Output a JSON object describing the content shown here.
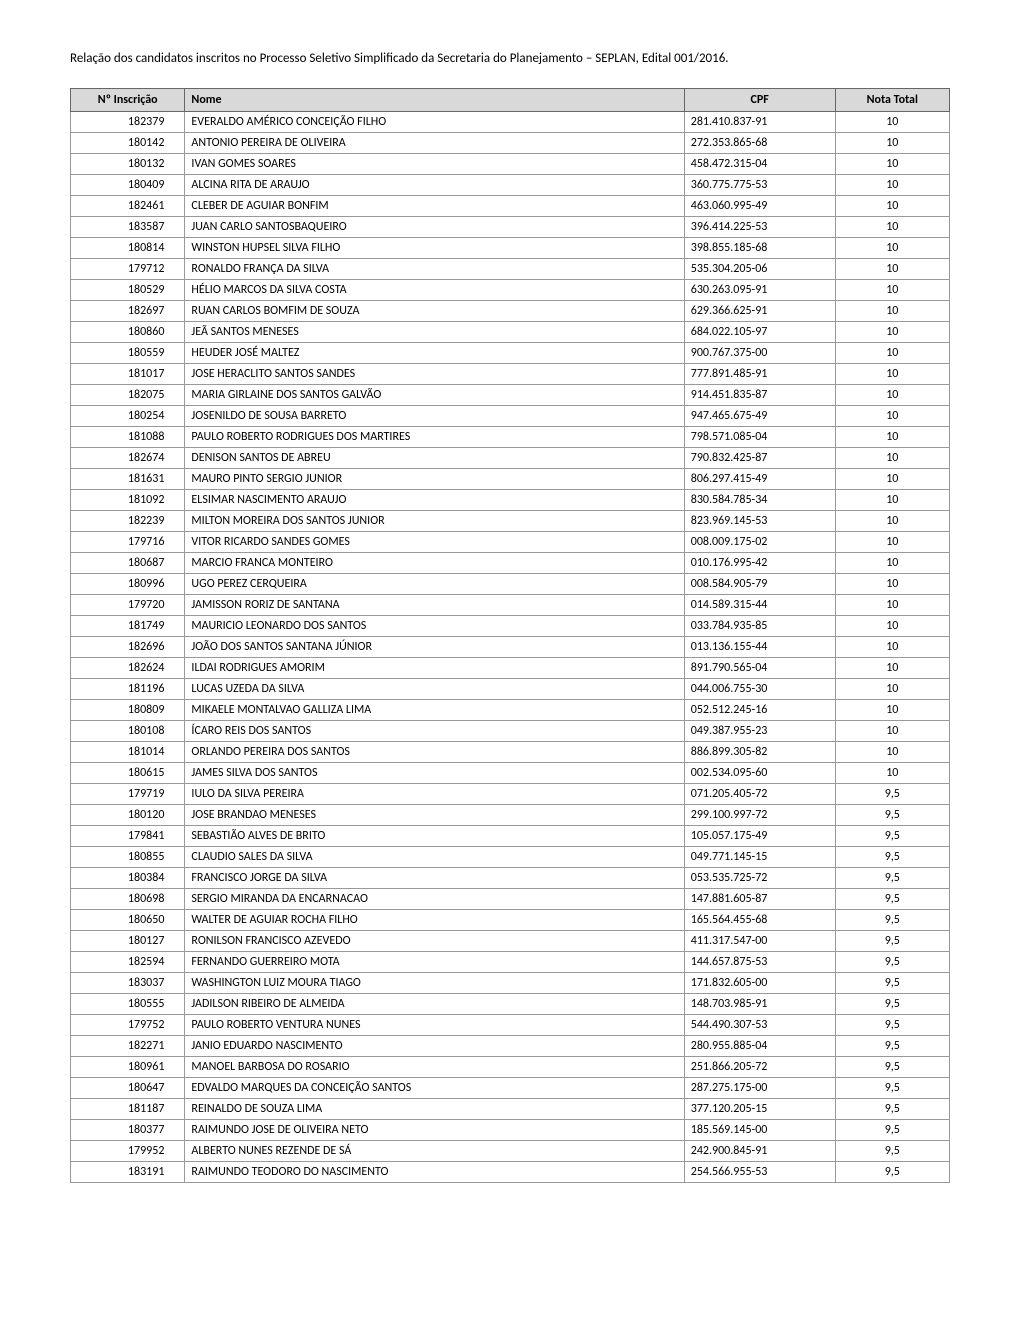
{
  "title": "Relação dos candidatos inscritos no Processo Seletivo Simplificado da Secretaria do Planejamento – SEPLAN, Edital 001/2016.",
  "table": {
    "headers": {
      "inscricao": "Nº Inscrição",
      "nome": "Nome",
      "cpf": "CPF",
      "nota": "Nota Total"
    },
    "rows": [
      {
        "inscricao": "182379",
        "nome": "EVERALDO AMÉRICO CONCEIÇÃO FILHO",
        "cpf": "281.410.837-91",
        "nota": "10"
      },
      {
        "inscricao": "180142",
        "nome": "ANTONIO PEREIRA DE OLIVEIRA",
        "cpf": "272.353.865-68",
        "nota": "10"
      },
      {
        "inscricao": "180132",
        "nome": "IVAN GOMES SOARES",
        "cpf": "458.472.315-04",
        "nota": "10"
      },
      {
        "inscricao": "180409",
        "nome": "ALCINA RITA DE ARAUJO",
        "cpf": "360.775.775-53",
        "nota": "10"
      },
      {
        "inscricao": "182461",
        "nome": "CLEBER DE AGUIAR BONFIM",
        "cpf": "463.060.995-49",
        "nota": "10"
      },
      {
        "inscricao": "183587",
        "nome": "JUAN CARLO SANTOSBAQUEIRO",
        "cpf": "396.414.225-53",
        "nota": "10"
      },
      {
        "inscricao": "180814",
        "nome": "WINSTON HUPSEL SILVA FILHO",
        "cpf": "398.855.185-68",
        "nota": "10"
      },
      {
        "inscricao": "179712",
        "nome": "RONALDO FRANÇA DA SILVA",
        "cpf": "535.304.205-06",
        "nota": "10"
      },
      {
        "inscricao": "180529",
        "nome": "HÉLIO MARCOS DA SILVA COSTA",
        "cpf": "630.263.095-91",
        "nota": "10"
      },
      {
        "inscricao": "182697",
        "nome": "RUAN CARLOS BOMFIM DE SOUZA",
        "cpf": "629.366.625-91",
        "nota": "10"
      },
      {
        "inscricao": "180860",
        "nome": "JEÃ SANTOS MENESES",
        "cpf": "684.022.105-97",
        "nota": "10"
      },
      {
        "inscricao": "180559",
        "nome": "HEUDER JOSÉ MALTEZ",
        "cpf": "900.767.375-00",
        "nota": "10"
      },
      {
        "inscricao": "181017",
        "nome": "JOSE HERACLITO SANTOS SANDES",
        "cpf": "777.891.485-91",
        "nota": "10"
      },
      {
        "inscricao": "182075",
        "nome": "MARIA GIRLAINE DOS SANTOS GALVÃO",
        "cpf": "914.451.835-87",
        "nota": "10"
      },
      {
        "inscricao": "180254",
        "nome": "JOSENILDO DE SOUSA BARRETO",
        "cpf": "947.465.675-49",
        "nota": "10"
      },
      {
        "inscricao": "181088",
        "nome": "PAULO ROBERTO RODRIGUES DOS MARTIRES",
        "cpf": "798.571.085-04",
        "nota": "10"
      },
      {
        "inscricao": "182674",
        "nome": "DENISON SANTOS DE ABREU",
        "cpf": "790.832.425-87",
        "nota": "10"
      },
      {
        "inscricao": "181631",
        "nome": "MAURO PINTO SERGIO JUNIOR",
        "cpf": "806.297.415-49",
        "nota": "10"
      },
      {
        "inscricao": "181092",
        "nome": "ELSIMAR NASCIMENTO ARAUJO",
        "cpf": "830.584.785-34",
        "nota": "10"
      },
      {
        "inscricao": "182239",
        "nome": "MILTON MOREIRA DOS SANTOS JUNIOR",
        "cpf": "823.969.145-53",
        "nota": "10"
      },
      {
        "inscricao": "179716",
        "nome": "VITOR RICARDO SANDES GOMES",
        "cpf": "008.009.175-02",
        "nota": "10"
      },
      {
        "inscricao": "180687",
        "nome": "MARCIO FRANCA MONTEIRO",
        "cpf": "010.176.995-42",
        "nota": "10"
      },
      {
        "inscricao": "180996",
        "nome": "UGO PEREZ CERQUEIRA",
        "cpf": "008.584.905-79",
        "nota": "10"
      },
      {
        "inscricao": "179720",
        "nome": "JAMISSON RORIZ DE SANTANA",
        "cpf": "014.589.315-44",
        "nota": "10"
      },
      {
        "inscricao": "181749",
        "nome": "MAURICIO LEONARDO DOS SANTOS",
        "cpf": "033.784.935-85",
        "nota": "10"
      },
      {
        "inscricao": "182696",
        "nome": "JOÃO DOS SANTOS SANTANA JÚNIOR",
        "cpf": "013.136.155-44",
        "nota": "10"
      },
      {
        "inscricao": "182624",
        "nome": "ILDAI RODRIGUES AMORIM",
        "cpf": "891.790.565-04",
        "nota": "10"
      },
      {
        "inscricao": "181196",
        "nome": "LUCAS UZEDA DA SILVA",
        "cpf": "044.006.755-30",
        "nota": "10"
      },
      {
        "inscricao": "180809",
        "nome": "MIKAELE MONTALVAO GALLIZA LIMA",
        "cpf": "052.512.245-16",
        "nota": "10"
      },
      {
        "inscricao": "180108",
        "nome": "ÍCARO REIS DOS SANTOS",
        "cpf": "049.387.955-23",
        "nota": "10"
      },
      {
        "inscricao": "181014",
        "nome": "ORLANDO PEREIRA DOS SANTOS",
        "cpf": "886.899.305-82",
        "nota": "10"
      },
      {
        "inscricao": "180615",
        "nome": "JAMES SILVA DOS SANTOS",
        "cpf": "002.534.095-60",
        "nota": "10"
      },
      {
        "inscricao": "179719",
        "nome": "IULO DA SILVA PEREIRA",
        "cpf": "071.205.405-72",
        "nota": "9,5"
      },
      {
        "inscricao": "180120",
        "nome": "JOSE BRANDAO MENESES",
        "cpf": "299.100.997-72",
        "nota": "9,5"
      },
      {
        "inscricao": "179841",
        "nome": "SEBASTIÃO ALVES DE BRITO",
        "cpf": "105.057.175-49",
        "nota": "9,5"
      },
      {
        "inscricao": "180855",
        "nome": "CLAUDIO SALES DA SILVA",
        "cpf": "049.771.145-15",
        "nota": "9,5"
      },
      {
        "inscricao": "180384",
        "nome": "FRANCISCO JORGE DA SILVA",
        "cpf": "053.535.725-72",
        "nota": "9,5"
      },
      {
        "inscricao": "180698",
        "nome": "SERGIO MIRANDA DA ENCARNACAO",
        "cpf": "147.881.605-87",
        "nota": "9,5"
      },
      {
        "inscricao": "180650",
        "nome": "WALTER DE AGUIAR ROCHA FILHO",
        "cpf": "165.564.455-68",
        "nota": "9,5"
      },
      {
        "inscricao": "180127",
        "nome": "RONILSON FRANCISCO AZEVEDO",
        "cpf": "411.317.547-00",
        "nota": "9,5"
      },
      {
        "inscricao": "182594",
        "nome": "FERNANDO GUERREIRO MOTA",
        "cpf": "144.657.875-53",
        "nota": "9,5"
      },
      {
        "inscricao": "183037",
        "nome": "WASHINGTON LUIZ MOURA TIAGO",
        "cpf": "171.832.605-00",
        "nota": "9,5"
      },
      {
        "inscricao": "180555",
        "nome": "JADILSON RIBEIRO DE ALMEIDA",
        "cpf": "148.703.985-91",
        "nota": "9,5"
      },
      {
        "inscricao": "179752",
        "nome": "PAULO ROBERTO VENTURA NUNES",
        "cpf": "544.490.307-53",
        "nota": "9,5"
      },
      {
        "inscricao": "182271",
        "nome": "JANIO EDUARDO NASCIMENTO",
        "cpf": "280.955.885-04",
        "nota": "9,5"
      },
      {
        "inscricao": "180961",
        "nome": "MANOEL BARBOSA DO ROSARIO",
        "cpf": "251.866.205-72",
        "nota": "9,5"
      },
      {
        "inscricao": "180647",
        "nome": "EDVALDO MARQUES DA CONCEIÇÃO SANTOS",
        "cpf": "287.275.175-00",
        "nota": "9,5"
      },
      {
        "inscricao": "181187",
        "nome": "REINALDO DE SOUZA LIMA",
        "cpf": "377.120.205-15",
        "nota": "9,5"
      },
      {
        "inscricao": "180377",
        "nome": "RAIMUNDO JOSE DE OLIVEIRA NETO",
        "cpf": "185.569.145-00",
        "nota": "9,5"
      },
      {
        "inscricao": "179952",
        "nome": "ALBERTO NUNES REZENDE DE SÁ",
        "cpf": "242.900.845-91",
        "nota": "9,5"
      },
      {
        "inscricao": "183191",
        "nome": "RAIMUNDO TEODORO DO NASCIMENTO",
        "cpf": "254.566.955-53",
        "nota": "9,5"
      }
    ]
  }
}
